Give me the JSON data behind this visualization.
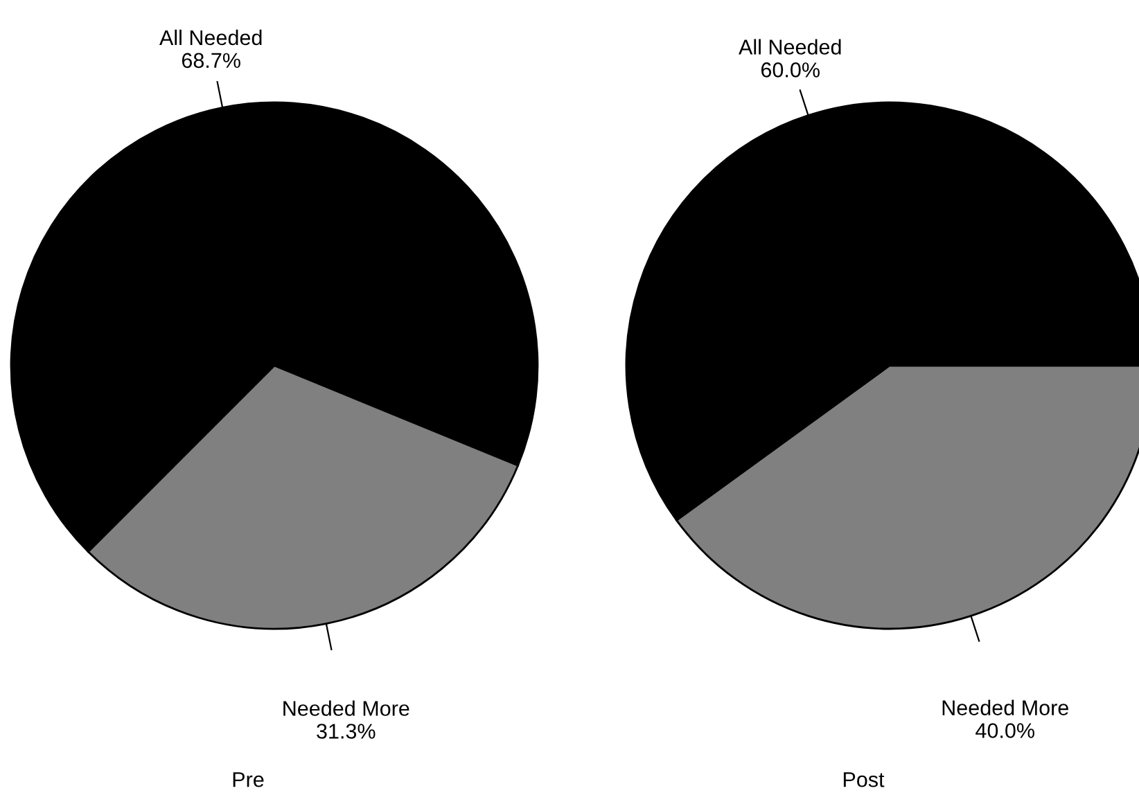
{
  "chart_data": [
    {
      "type": "pie",
      "title": "Pre",
      "categories": [
        "All Needed",
        "Needed More"
      ],
      "values": [
        68.7,
        31.3
      ],
      "colors": [
        "#000000",
        "#808080"
      ],
      "value_labels": [
        "68.7%",
        "31.3%"
      ]
    },
    {
      "type": "pie",
      "title": "Post",
      "categories": [
        "All Needed",
        "Needed More"
      ],
      "values": [
        60.0,
        40.0
      ],
      "colors": [
        "#000000",
        "#808080"
      ],
      "value_labels": [
        "60.0%",
        "40.0%"
      ]
    }
  ]
}
